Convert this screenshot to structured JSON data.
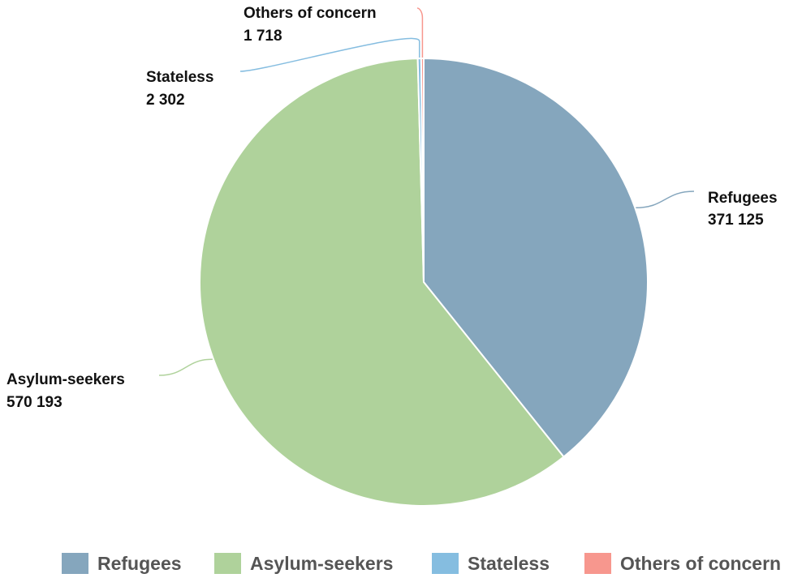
{
  "chart_data": {
    "type": "pie",
    "categories": [
      "Refugees",
      "Asylum-seekers",
      "Stateless",
      "Others of concern"
    ],
    "values": [
      371125,
      570193,
      2302,
      1718
    ],
    "labels": [
      {
        "name": "Refugees",
        "value_text": "371 125"
      },
      {
        "name": "Asylum-seekers",
        "value_text": "570 193"
      },
      {
        "name": "Stateless",
        "value_text": "2 302"
      },
      {
        "name": "Others of concern",
        "value_text": "1 718"
      }
    ],
    "colors": [
      "#85a6bd",
      "#afd29b",
      "#85bde0",
      "#f7978e"
    ],
    "legend": {
      "placement": "bottom",
      "items": [
        "Refugees",
        "Asylum-seekers",
        "Stateless",
        "Others of concern"
      ]
    }
  }
}
